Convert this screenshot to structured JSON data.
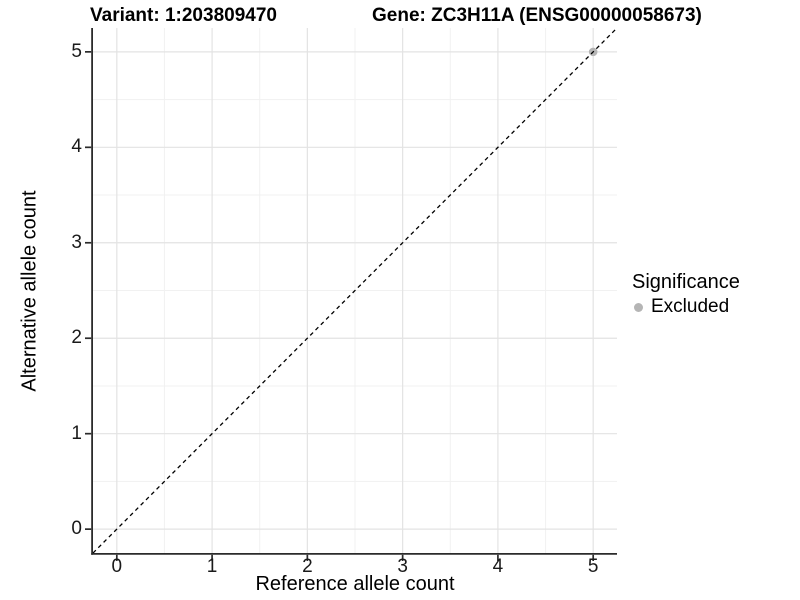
{
  "colors": {
    "background": "#ffffff",
    "grid_major": "#e3e3e3",
    "grid_minor": "#f1f1f1",
    "axis_line": "#2b2b2b",
    "tick_mark": "#2b2b2b",
    "text": "#000000",
    "tick_text": "#1a1a1a",
    "point": "#b5b5b5",
    "reference_line": "#000000"
  },
  "legend": {
    "title": "Significance",
    "items": [
      {
        "label": "Excluded",
        "color": "#b5b5b5"
      }
    ]
  },
  "chart_data": {
    "type": "scatter",
    "title_left": "Variant: 1:203809470",
    "title_right": "Gene: ZC3H11A (ENSG00000058673)",
    "xlabel": "Reference allele count",
    "ylabel": "Alternative allele count",
    "xlim": [
      -0.25,
      5.25
    ],
    "ylim": [
      -0.25,
      5.25
    ],
    "x_ticks": [
      0,
      1,
      2,
      3,
      4,
      5
    ],
    "y_ticks": [
      0,
      1,
      2,
      3,
      4,
      5
    ],
    "x_minor_ticks": [
      0.5,
      1.5,
      2.5,
      3.5,
      4.5
    ],
    "y_minor_ticks": [
      0.5,
      1.5,
      2.5,
      3.5,
      4.5
    ],
    "grid": "major+minor",
    "legend_position": "right",
    "series": [
      {
        "name": "Excluded",
        "color": "#b5b5b5",
        "points": [
          {
            "x": 5,
            "y": 5
          }
        ]
      }
    ],
    "reference_line": {
      "type": "identity",
      "slope": 1,
      "intercept": 0,
      "style": "dashed",
      "color": "#000000"
    }
  }
}
